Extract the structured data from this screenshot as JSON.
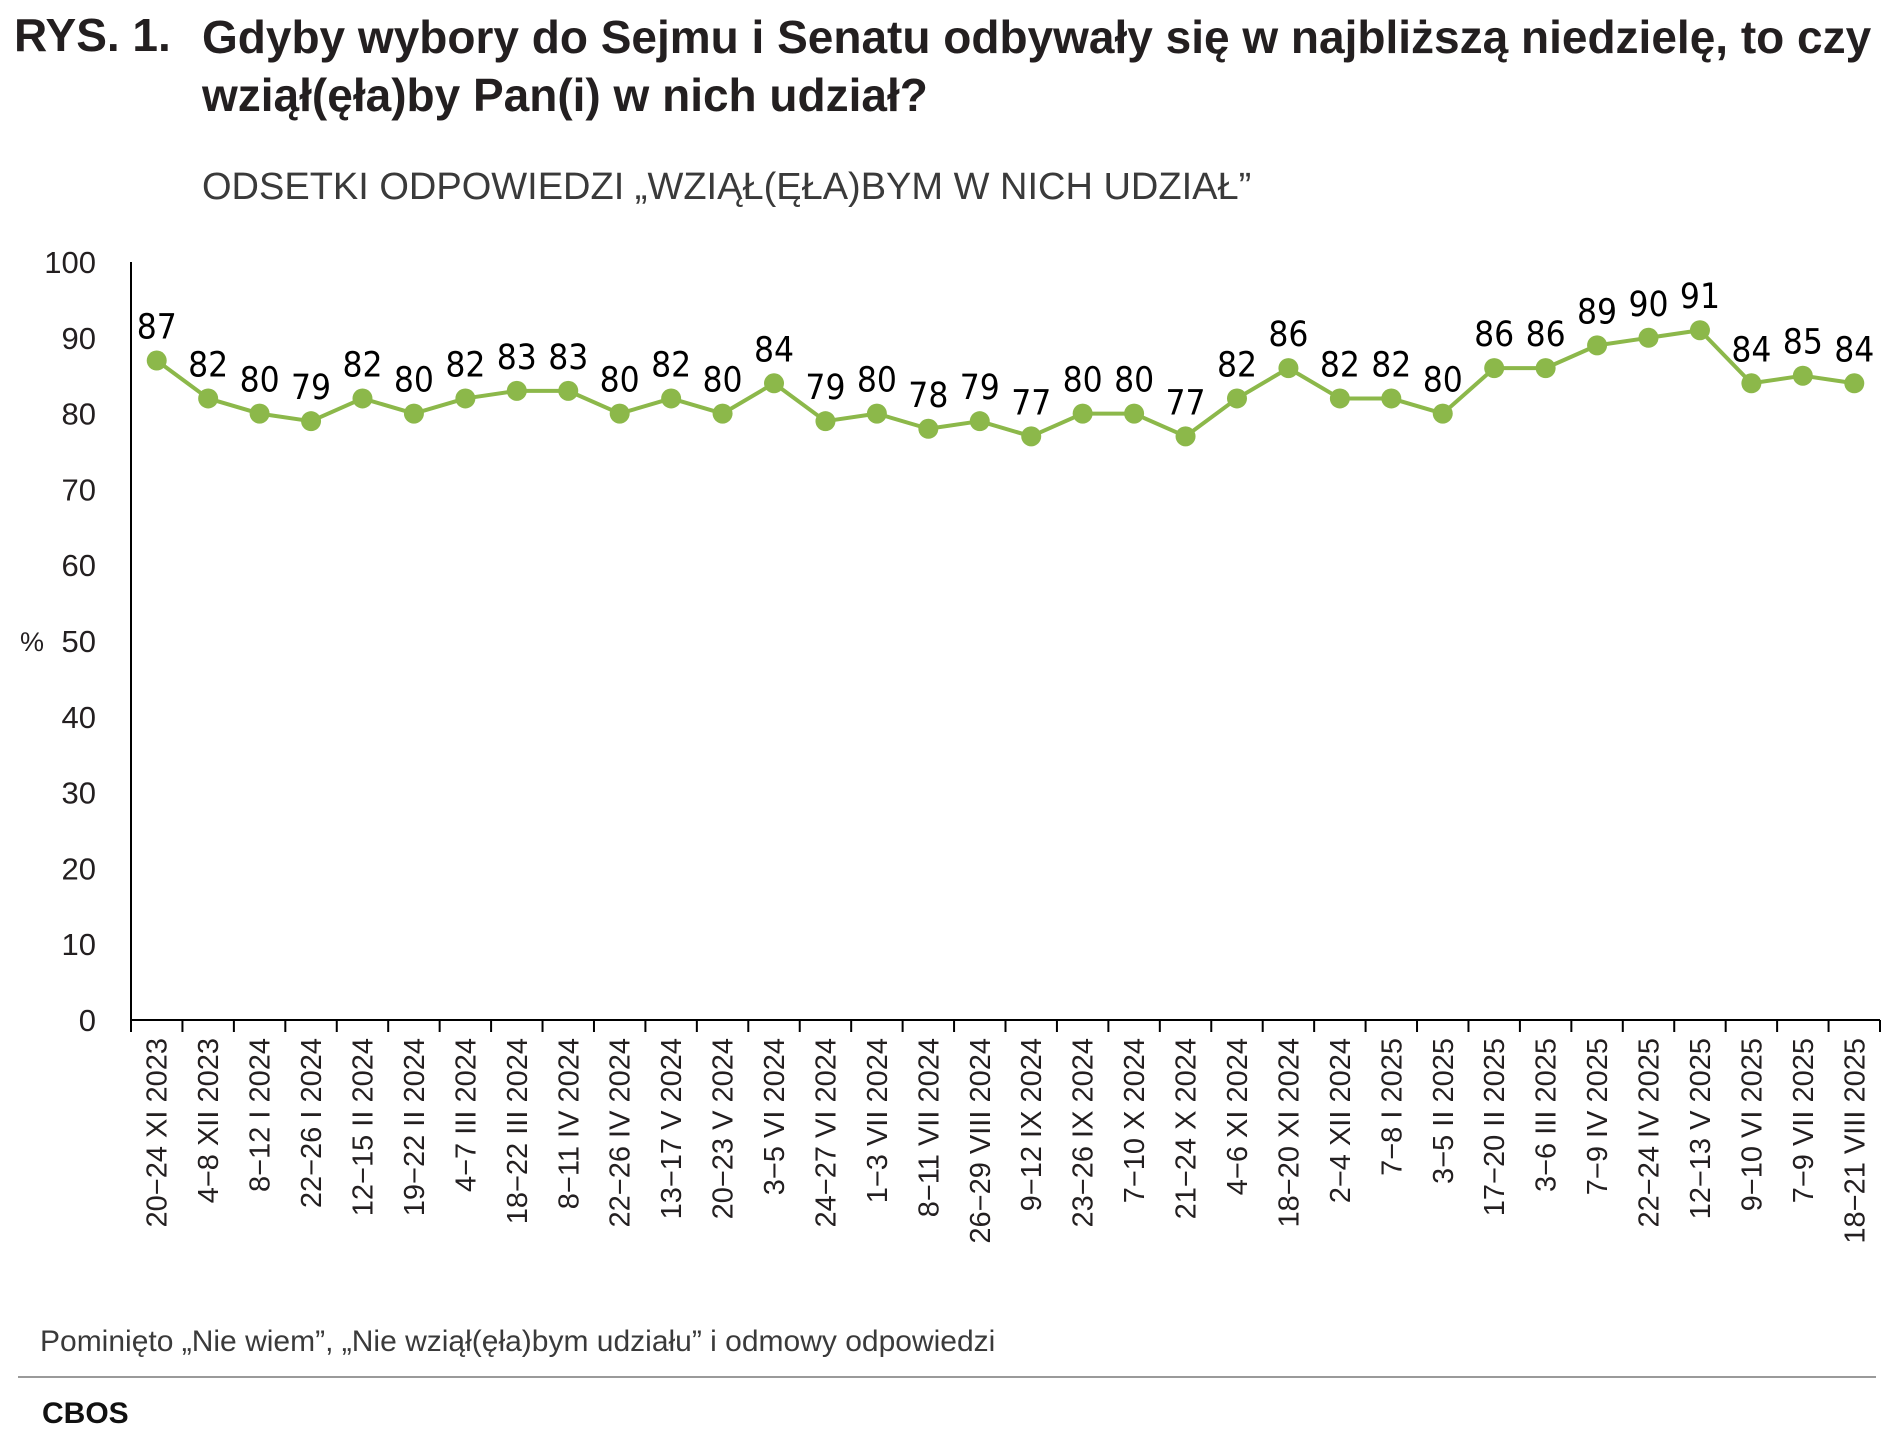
{
  "title": {
    "prefix": "RYS. 1.",
    "text": "Gdyby wybory do Sejmu i Senatu odbywały się w najbliższą niedzielę, to czy wziął(ęła)by Pan(i) w nich udział?"
  },
  "subtitle": "ODSETKI ODPOWIEDZI „WZIĄŁ(ĘŁA)BYM W NICH UDZIAŁ”",
  "footnote": "Pominięto „Nie wiem”, „Nie wziął(ęła)bym udziału” i odmowy odpowiedzi",
  "source": "CBOS",
  "colors": {
    "series": "#8cb84a",
    "axis": "#000000",
    "text": "#231f20"
  },
  "chart_data": {
    "type": "line",
    "ylabel": "%",
    "ylim": [
      0,
      100
    ],
    "yticks": [
      0,
      10,
      20,
      30,
      40,
      50,
      60,
      70,
      80,
      90,
      100
    ],
    "grid": false,
    "categories": [
      "20−24 XI 2023",
      "4−8 XII 2023",
      "8−12 I 2024",
      "22−26 I 2024",
      "12−15 II 2024",
      "19−22 II 2024",
      "4−7 III 2024",
      "18−22 III 2024",
      "8−11 IV 2024",
      "22−26 IV 2024",
      "13−17 V 2024",
      "20−23 V 2024",
      "3−5 VI 2024",
      "24−27 VI 2024",
      "1−3 VII 2024",
      "8−11 VII 2024",
      "26−29 VIII 2024",
      "9−12 IX 2024",
      "23−26 IX 2024",
      "7−10 X 2024",
      "21−24 X 2024",
      "4−6 XI 2024",
      "18−20 XI 2024",
      "2−4 XII 2024",
      "7−8 I 2025",
      "3−5 II 2025",
      "17−20 II 2025",
      "3−6 III 2025",
      "7−9 IV 2025",
      "22−24 IV 2025",
      "12−13 V 2025",
      "9−10 VI 2025",
      "7−9 VII 2025",
      "18−21 VIII 2025"
    ],
    "series": [
      {
        "values": [
          87,
          82,
          80,
          79,
          82,
          80,
          82,
          83,
          83,
          80,
          82,
          80,
          84,
          79,
          80,
          78,
          79,
          77,
          80,
          80,
          77,
          82,
          86,
          82,
          82,
          80,
          86,
          86,
          89,
          90,
          91,
          84,
          85,
          84
        ]
      }
    ]
  }
}
